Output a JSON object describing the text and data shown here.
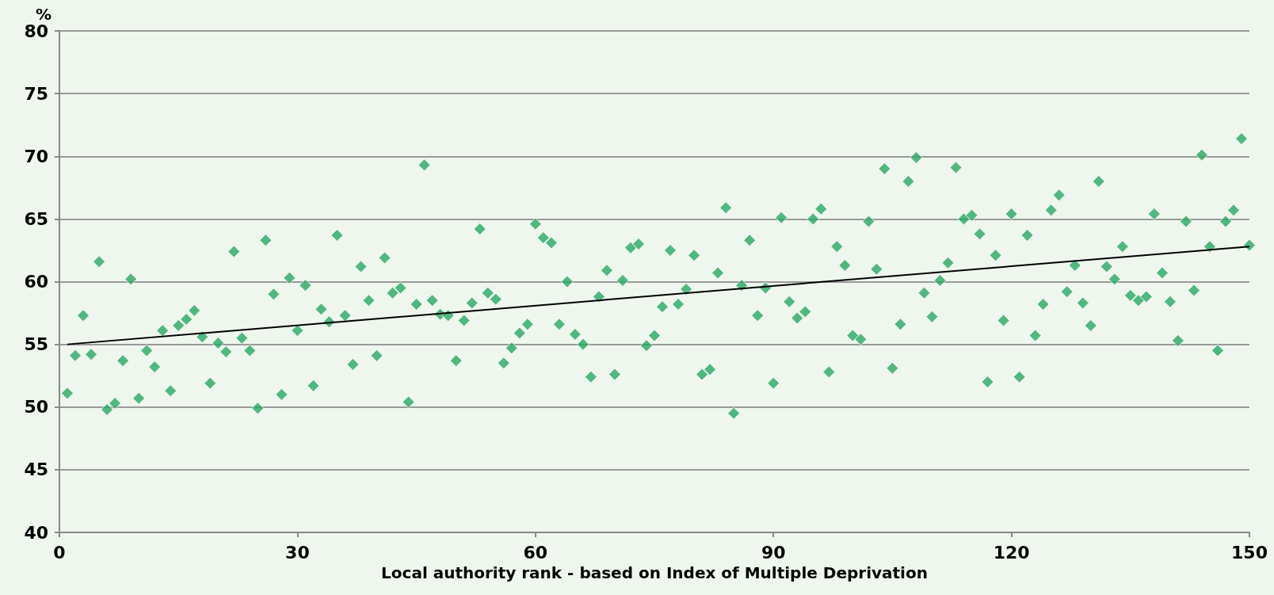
{
  "chart_data": {
    "type": "scatter",
    "xlabel": "Local authority rank - based on Index of Multiple Deprivation",
    "ylabel": "%",
    "xlim": [
      0,
      150
    ],
    "xticks": [
      0,
      30,
      60,
      90,
      120,
      150
    ],
    "ylim": [
      40,
      80
    ],
    "yticks": [
      40,
      45,
      50,
      55,
      60,
      65,
      70,
      75,
      80
    ],
    "grid": "y",
    "x": [
      1,
      2,
      3,
      4,
      5,
      6,
      7,
      8,
      9,
      10,
      11,
      12,
      13,
      14,
      15,
      16,
      17,
      18,
      19,
      20,
      21,
      22,
      23,
      24,
      25,
      26,
      27,
      28,
      29,
      30,
      31,
      32,
      33,
      34,
      35,
      36,
      37,
      38,
      39,
      40,
      41,
      42,
      43,
      44,
      45,
      46,
      47,
      48,
      49,
      50,
      51,
      52,
      53,
      54,
      55,
      56,
      57,
      58,
      59,
      60,
      61,
      62,
      63,
      64,
      65,
      66,
      67,
      68,
      69,
      70,
      71,
      72,
      73,
      74,
      75,
      76,
      77,
      78,
      79,
      80,
      81,
      82,
      83,
      84,
      85,
      86,
      87,
      88,
      89,
      90,
      91,
      92,
      93,
      94,
      95,
      96,
      97,
      98,
      99,
      100,
      101,
      102,
      103,
      104,
      105,
      106,
      107,
      108,
      109,
      110,
      111,
      112,
      113,
      114,
      115,
      116,
      117,
      118,
      119,
      120,
      121,
      122,
      123,
      124,
      125,
      126,
      127,
      128,
      129,
      130,
      131,
      132,
      133,
      134,
      135,
      136,
      137,
      138,
      139,
      140,
      141,
      142,
      143,
      144,
      145,
      146,
      147,
      148,
      149,
      150
    ],
    "series": [
      {
        "marker": "diamond",
        "color": "#27a961",
        "values": [
          51.1,
          54.1,
          57.3,
          54.2,
          61.6,
          49.8,
          50.3,
          53.7,
          60.2,
          50.7,
          54.5,
          53.2,
          56.1,
          51.3,
          56.5,
          57.0,
          57.7,
          55.6,
          51.9,
          55.1,
          54.4,
          62.4,
          55.5,
          54.5,
          49.9,
          63.3,
          59.0,
          51.0,
          60.3,
          56.1,
          59.7,
          51.7,
          57.8,
          56.8,
          63.7,
          57.3,
          53.4,
          61.2,
          58.5,
          54.1,
          61.9,
          59.1,
          59.5,
          50.4,
          58.2,
          69.3,
          58.5,
          57.4,
          57.3,
          53.7,
          56.9,
          58.3,
          64.2,
          59.1,
          58.6,
          53.5,
          54.7,
          55.9,
          56.6,
          64.6,
          63.5,
          63.1,
          56.6,
          60.0,
          55.8,
          55.0,
          52.4,
          58.8,
          60.9,
          52.6,
          60.1,
          62.7,
          63.0,
          54.9,
          55.7,
          58.0,
          62.5,
          58.2,
          59.4,
          62.1,
          52.6,
          53.0,
          60.7,
          65.9,
          49.5,
          59.7,
          63.3,
          57.3,
          59.5,
          51.9,
          65.1,
          58.4,
          57.1,
          57.6,
          65.0,
          65.8,
          52.8,
          62.8,
          61.3,
          55.7,
          55.4,
          64.8,
          61.0,
          69.0,
          53.1,
          56.6,
          68.0,
          69.9,
          59.1,
          57.2,
          60.1,
          61.5,
          69.1,
          65.0,
          65.3,
          63.8,
          52.0,
          62.1,
          56.9,
          65.4,
          52.4,
          63.7,
          55.7,
          58.2,
          65.7,
          66.9,
          59.2,
          61.3,
          58.3,
          56.5,
          68.0,
          61.2,
          60.2,
          62.8,
          58.9,
          58.5,
          58.8,
          65.4,
          60.7,
          58.4,
          55.3,
          64.8,
          59.3,
          70.1,
          62.8,
          54.5,
          64.8,
          65.7,
          71.4,
          62.9
        ]
      },
      {
        "type": "line",
        "marker": "none",
        "line_style": "solid",
        "color": "#000000",
        "x": [
          1,
          150
        ],
        "values": [
          55.0,
          62.8
        ]
      }
    ]
  }
}
